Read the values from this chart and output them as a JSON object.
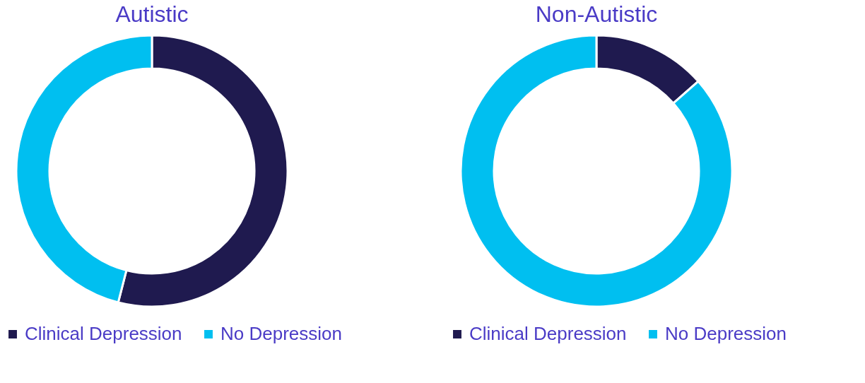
{
  "chart_data": [
    {
      "type": "donut",
      "title": "Autistic",
      "categories": [
        "Clinical Depression",
        "No Depression"
      ],
      "values": [
        54,
        46
      ],
      "colors": [
        "#1f1a4f",
        "#00bff0"
      ],
      "legend": "bottom"
    },
    {
      "type": "donut",
      "title": "Non-Autistic",
      "categories": [
        "Clinical Depression",
        "No Depression"
      ],
      "values": [
        13.5,
        86.5
      ],
      "colors": [
        "#1f1a4f",
        "#00bff0"
      ],
      "legend": "bottom"
    }
  ]
}
